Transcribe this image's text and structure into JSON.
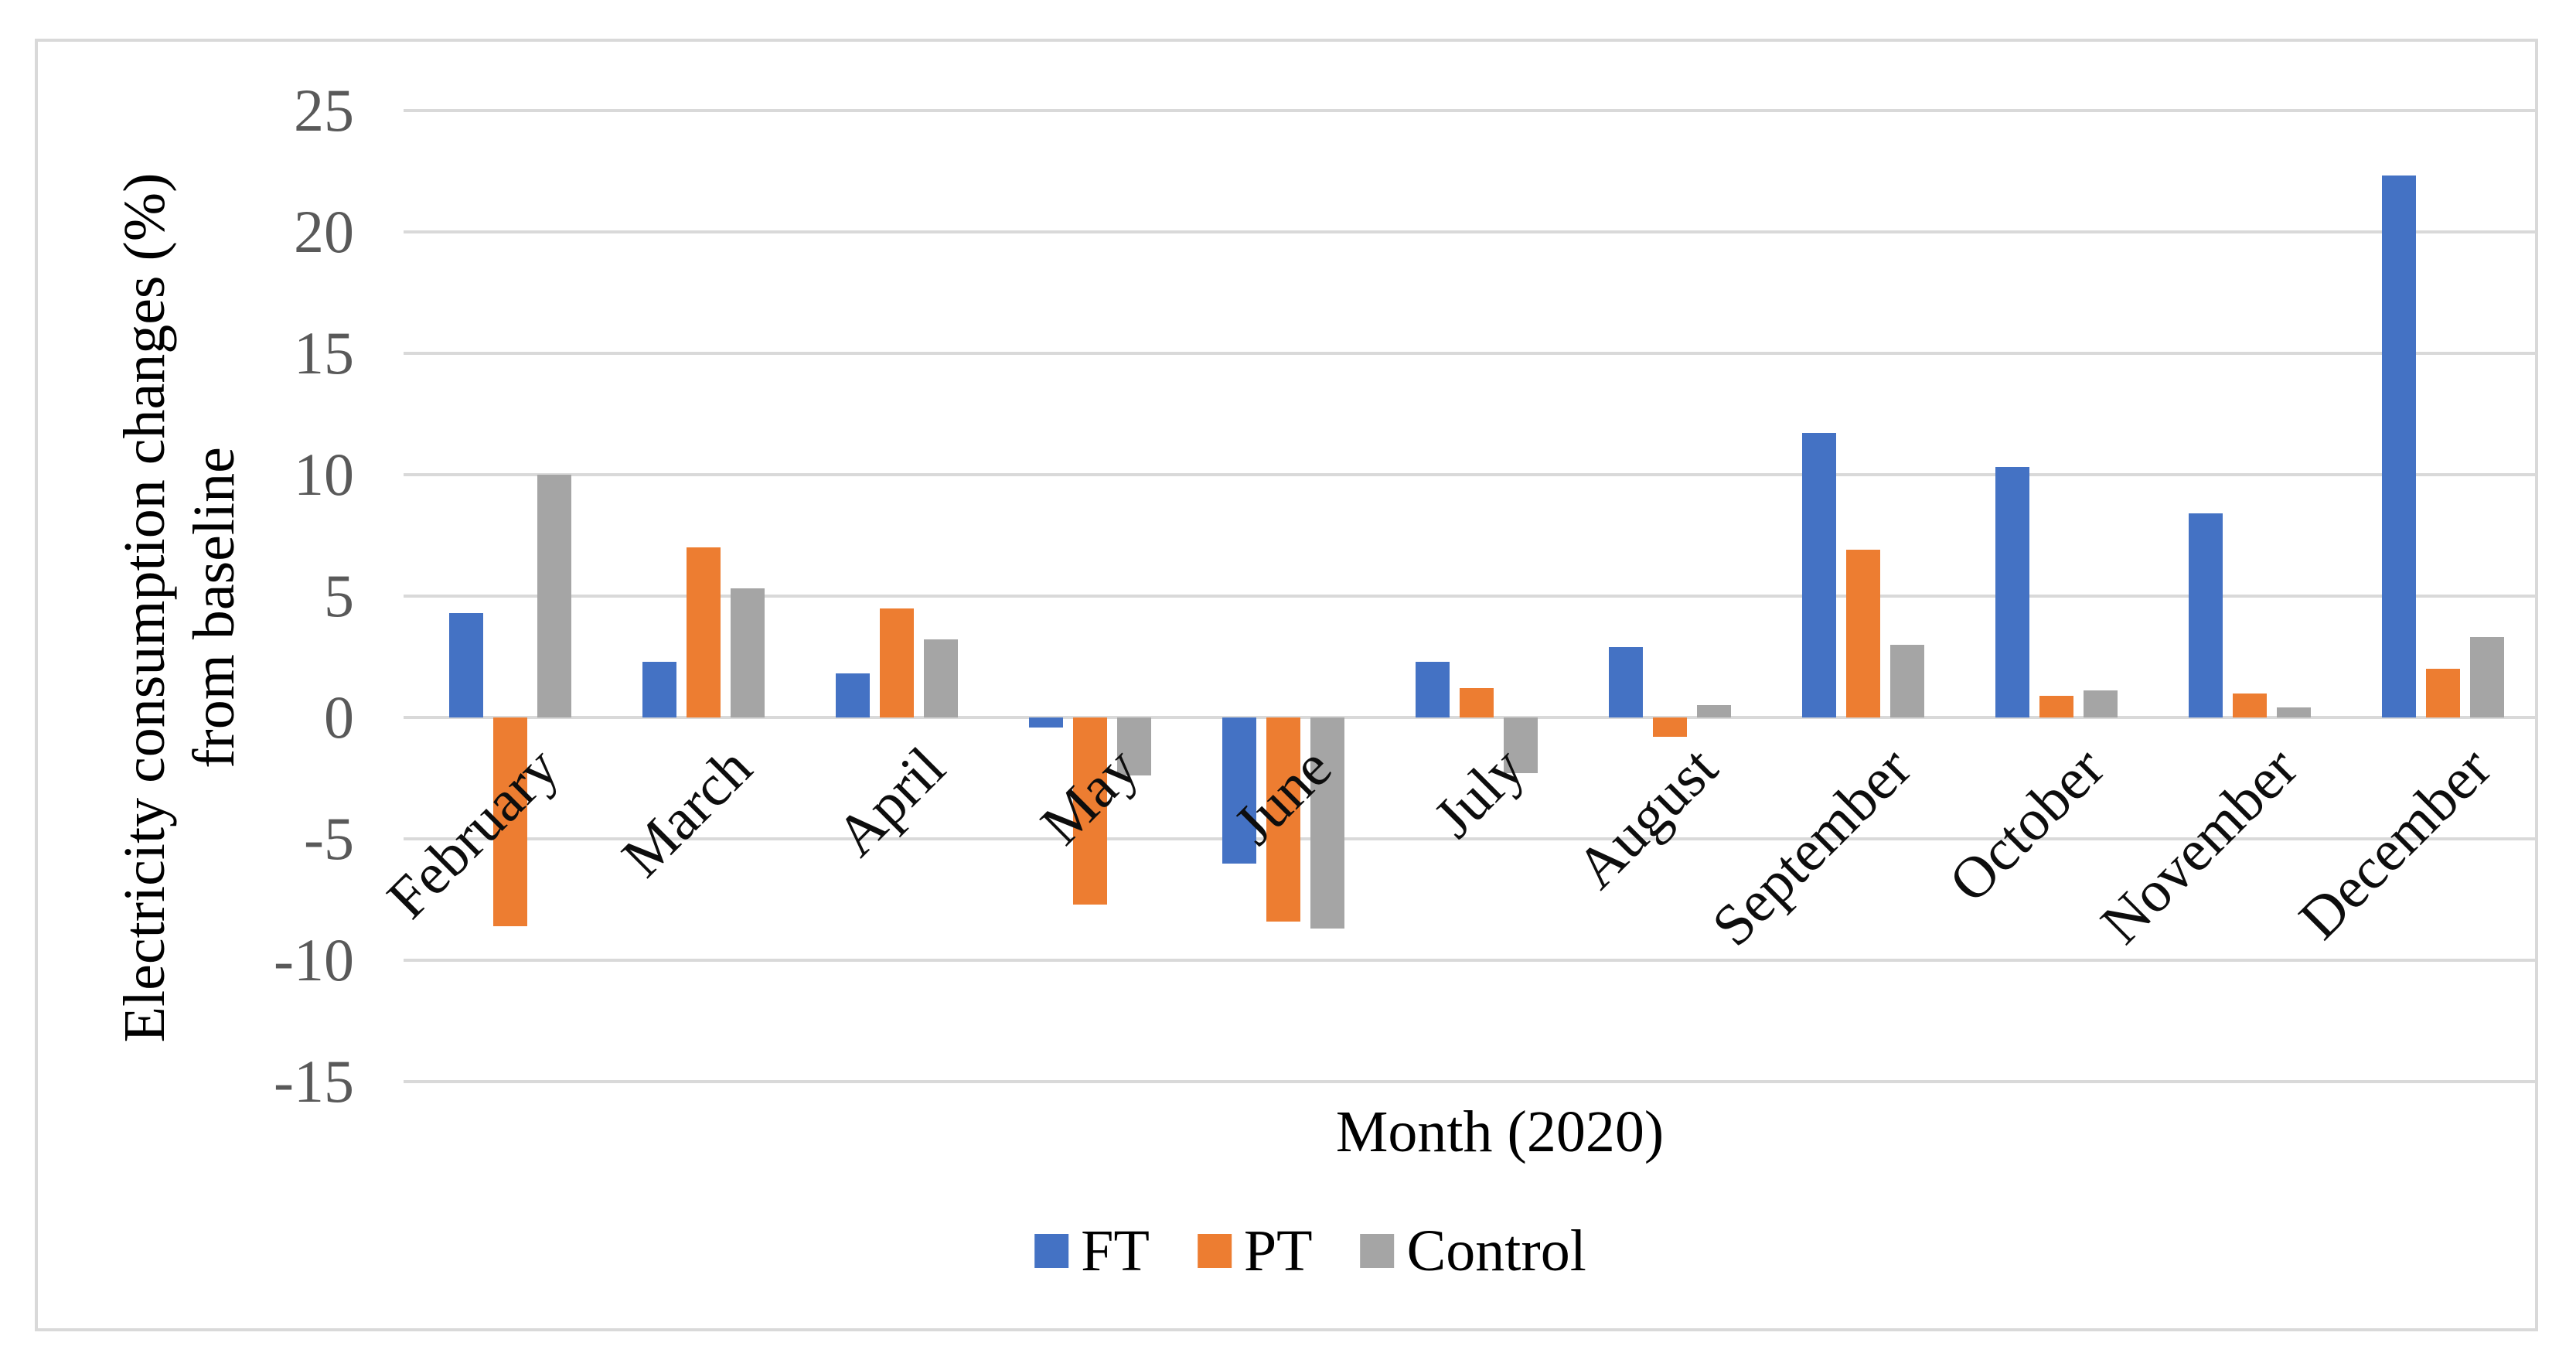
{
  "figure": {
    "background_color": "#ffffff",
    "border_color": "#d9d9d9"
  },
  "chart_data": {
    "type": "bar",
    "title": "",
    "xlabel": "Month (2020)",
    "ylabel_line1": "Electricity consumption changes (%)",
    "ylabel_line2": "from baseline",
    "categories": [
      "February",
      "March",
      "April",
      "May",
      "June",
      "July",
      "August",
      "September",
      "October",
      "November",
      "December"
    ],
    "series": [
      {
        "name": "FT",
        "color": "#4472C4",
        "values": [
          4.3,
          2.3,
          1.8,
          -0.4,
          -6.0,
          2.3,
          2.9,
          11.7,
          10.3,
          8.4,
          22.3
        ]
      },
      {
        "name": "PT",
        "color": "#ED7D31",
        "values": [
          -8.6,
          7.0,
          4.5,
          -7.7,
          -8.4,
          1.2,
          -0.8,
          6.9,
          0.9,
          1.0,
          2.0
        ]
      },
      {
        "name": "Control",
        "color": "#A5A5A5",
        "values": [
          10.0,
          5.3,
          3.2,
          -2.4,
          -8.7,
          -2.3,
          0.5,
          3.0,
          1.1,
          0.4,
          3.3
        ]
      }
    ],
    "ylim": [
      -15,
      25
    ],
    "ytick_step": 5,
    "yticks": [
      25,
      20,
      15,
      10,
      5,
      0,
      -5,
      -10,
      -15
    ],
    "grid": true,
    "gridline_color": "#d9d9d9",
    "tick_label_color": "#595959",
    "legend_position": "bottom",
    "x_tick_rotation_deg": 45
  }
}
